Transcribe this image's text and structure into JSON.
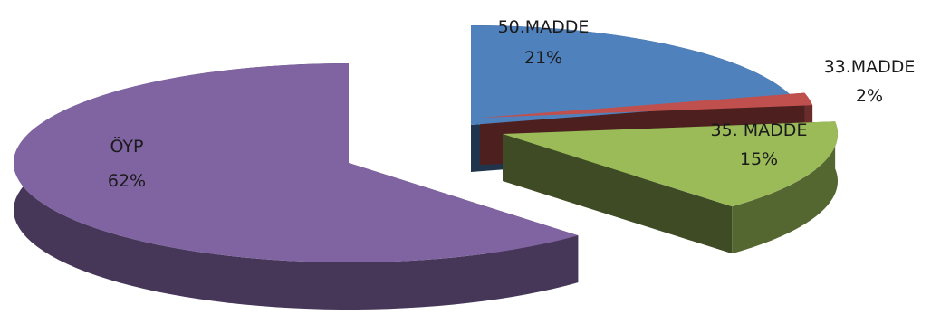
{
  "chart_data": {
    "type": "pie",
    "style": "3d-exploded",
    "slices": [
      {
        "name": "50.MADDE",
        "percent_label": "21%",
        "value": 21,
        "color": "#4F81BD"
      },
      {
        "name": "33.MADDE",
        "percent_label": "2%",
        "value": 2,
        "color": "#C0504D"
      },
      {
        "name": "35. MADDE",
        "percent_label": "15%",
        "value": 15,
        "color": "#9BBB59"
      },
      {
        "name": "ÖYP",
        "percent_label": "62%",
        "value": 62,
        "color": "#8064A2"
      }
    ],
    "title": "",
    "legend": "none",
    "data_labels": "category-and-percent"
  }
}
